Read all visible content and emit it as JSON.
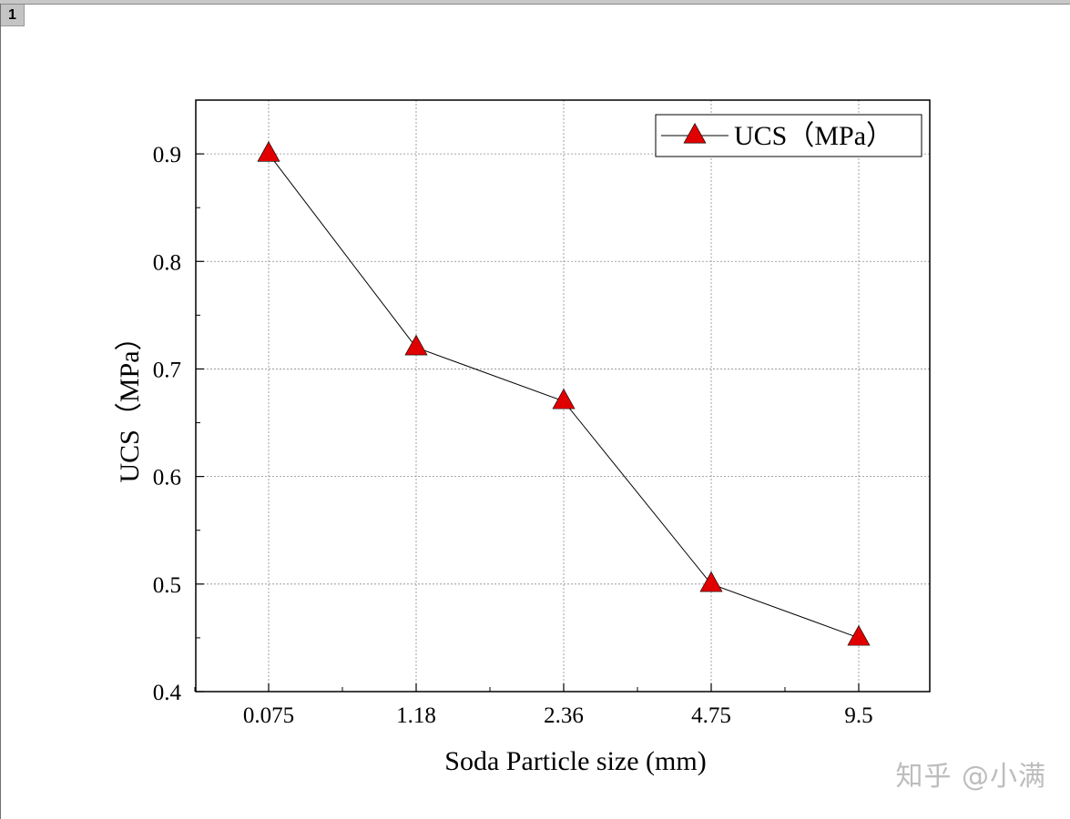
{
  "window": {
    "page_tab_label": "1"
  },
  "chart_data": {
    "type": "line",
    "categories": [
      "0.075",
      "1.18",
      "2.36",
      "4.75",
      "9.5"
    ],
    "series": [
      {
        "name": "UCS（MPa）",
        "values": [
          0.9,
          0.72,
          0.67,
          0.5,
          0.45
        ],
        "color": "#e00000",
        "marker": "triangle",
        "line_color": "#000000"
      }
    ],
    "title": "",
    "xlabel": "Soda Particle size (mm)",
    "ylabel": "UCS（MPa）",
    "ylim": [
      0.4,
      0.95
    ],
    "yticks": [
      0.4,
      0.5,
      0.6,
      0.7,
      0.8,
      0.9
    ],
    "ytick_labels": [
      "0.4",
      "0.5",
      "0.6",
      "0.7",
      "0.8",
      "0.9"
    ],
    "grid": true,
    "legend_position": "top-right"
  },
  "watermark": {
    "text": "知乎 @小满"
  }
}
